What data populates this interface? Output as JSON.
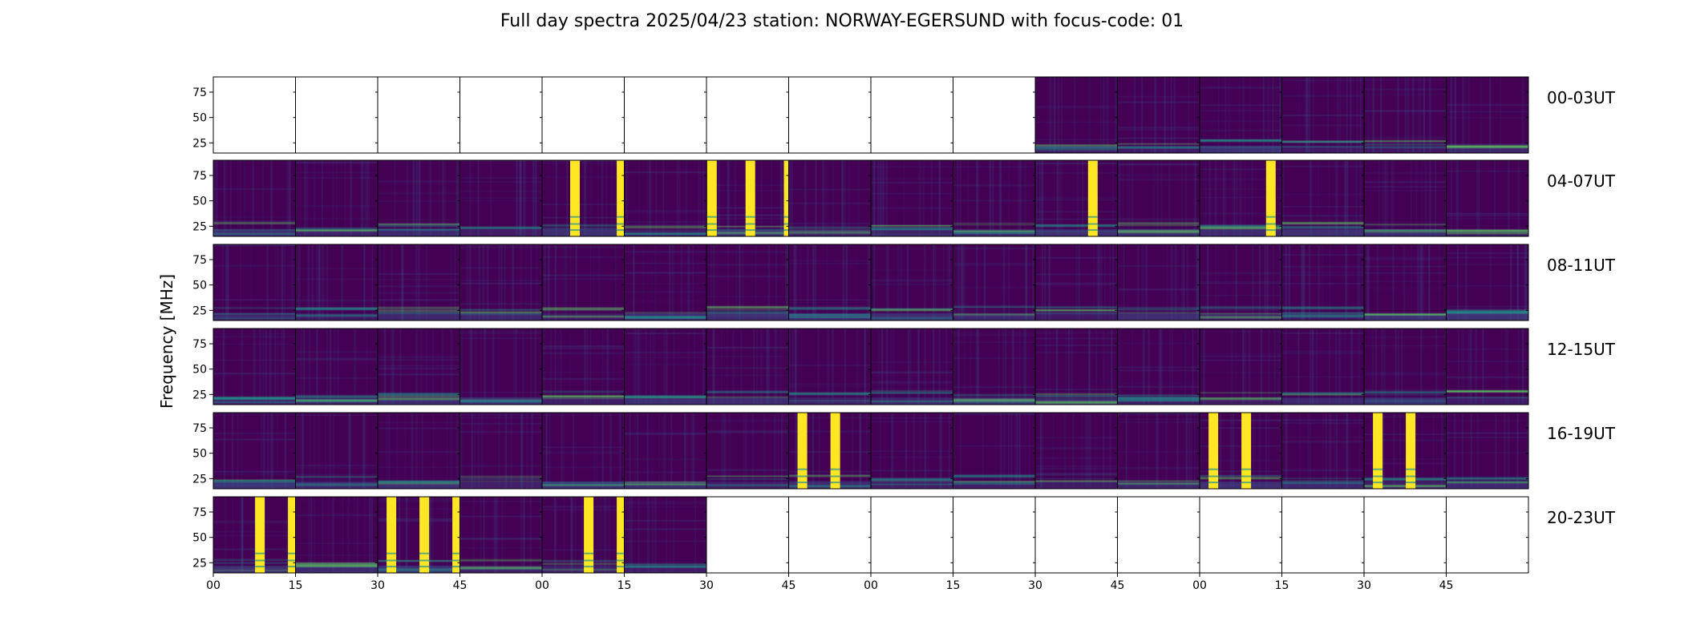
{
  "title": "Full day spectra 2025/04/23 station: NORWAY-EGERSUND with focus-code: 01",
  "chart_data": {
    "type": "heatmap",
    "title": "Full day spectra 2025/04/23 station: NORWAY-EGERSUND with focus-code: 01",
    "ylabel": "Frequency [MHz]",
    "ylim": [
      15,
      90
    ],
    "yticks": [
      "25",
      "50",
      "75"
    ],
    "xticks": [
      "00",
      "15",
      "30",
      "45",
      "00",
      "15",
      "30",
      "45",
      "00",
      "15",
      "30",
      "45",
      "00",
      "15",
      "30",
      "45"
    ],
    "colormap": "viridis",
    "colors": {
      "low": "#440154",
      "mid": "#3b528b",
      "teal": "#21918c",
      "green": "#5ec962",
      "high": "#fde725"
    },
    "rows": [
      {
        "label": "00-03UT",
        "panels": [
          0,
          0,
          0,
          0,
          0,
          0,
          0,
          0,
          0,
          0,
          1,
          1,
          1,
          1,
          1,
          1
        ]
      },
      {
        "label": "04-07UT",
        "panels": [
          1,
          1,
          1,
          1,
          1,
          1,
          1,
          1,
          1,
          1,
          1,
          1,
          1,
          1,
          1,
          1
        ]
      },
      {
        "label": "08-11UT",
        "panels": [
          1,
          1,
          1,
          1,
          1,
          1,
          1,
          1,
          1,
          1,
          1,
          1,
          1,
          1,
          1,
          1
        ]
      },
      {
        "label": "12-15UT",
        "panels": [
          1,
          1,
          1,
          1,
          1,
          1,
          1,
          1,
          1,
          1,
          1,
          1,
          1,
          1,
          1,
          1
        ]
      },
      {
        "label": "16-19UT",
        "panels": [
          1,
          1,
          1,
          1,
          1,
          1,
          1,
          1,
          1,
          1,
          1,
          1,
          1,
          1,
          1,
          1
        ]
      },
      {
        "label": "20-23UT",
        "panels": [
          1,
          1,
          1,
          1,
          1,
          1,
          0,
          0,
          0,
          0,
          0,
          0,
          0,
          0,
          0,
          0
        ]
      }
    ],
    "saturated_bursts": [
      {
        "row": 1,
        "panel": 4,
        "bars_min": [
          6,
          14.5
        ]
      },
      {
        "row": 1,
        "panel": 6,
        "bars_min": [
          1,
          8,
          15
        ]
      },
      {
        "row": 1,
        "panel": 10,
        "bars_min": [
          10.5
        ]
      },
      {
        "row": 1,
        "panel": 12,
        "bars_min": [
          13
        ]
      },
      {
        "row": 4,
        "panel": 7,
        "bars_min": [
          2.5,
          8.5
        ]
      },
      {
        "row": 4,
        "panel": 12,
        "bars_min": [
          2.5,
          8.5
        ]
      },
      {
        "row": 4,
        "panel": 14,
        "bars_min": [
          2.5,
          8.5
        ]
      },
      {
        "row": 5,
        "panel": 0,
        "bars_min": [
          8.5,
          14.5
        ]
      },
      {
        "row": 5,
        "panel": 2,
        "bars_min": [
          2.5,
          8.5,
          14.5
        ]
      },
      {
        "row": 5,
        "panel": 4,
        "bars_min": [
          8.5,
          14.5
        ]
      }
    ]
  }
}
